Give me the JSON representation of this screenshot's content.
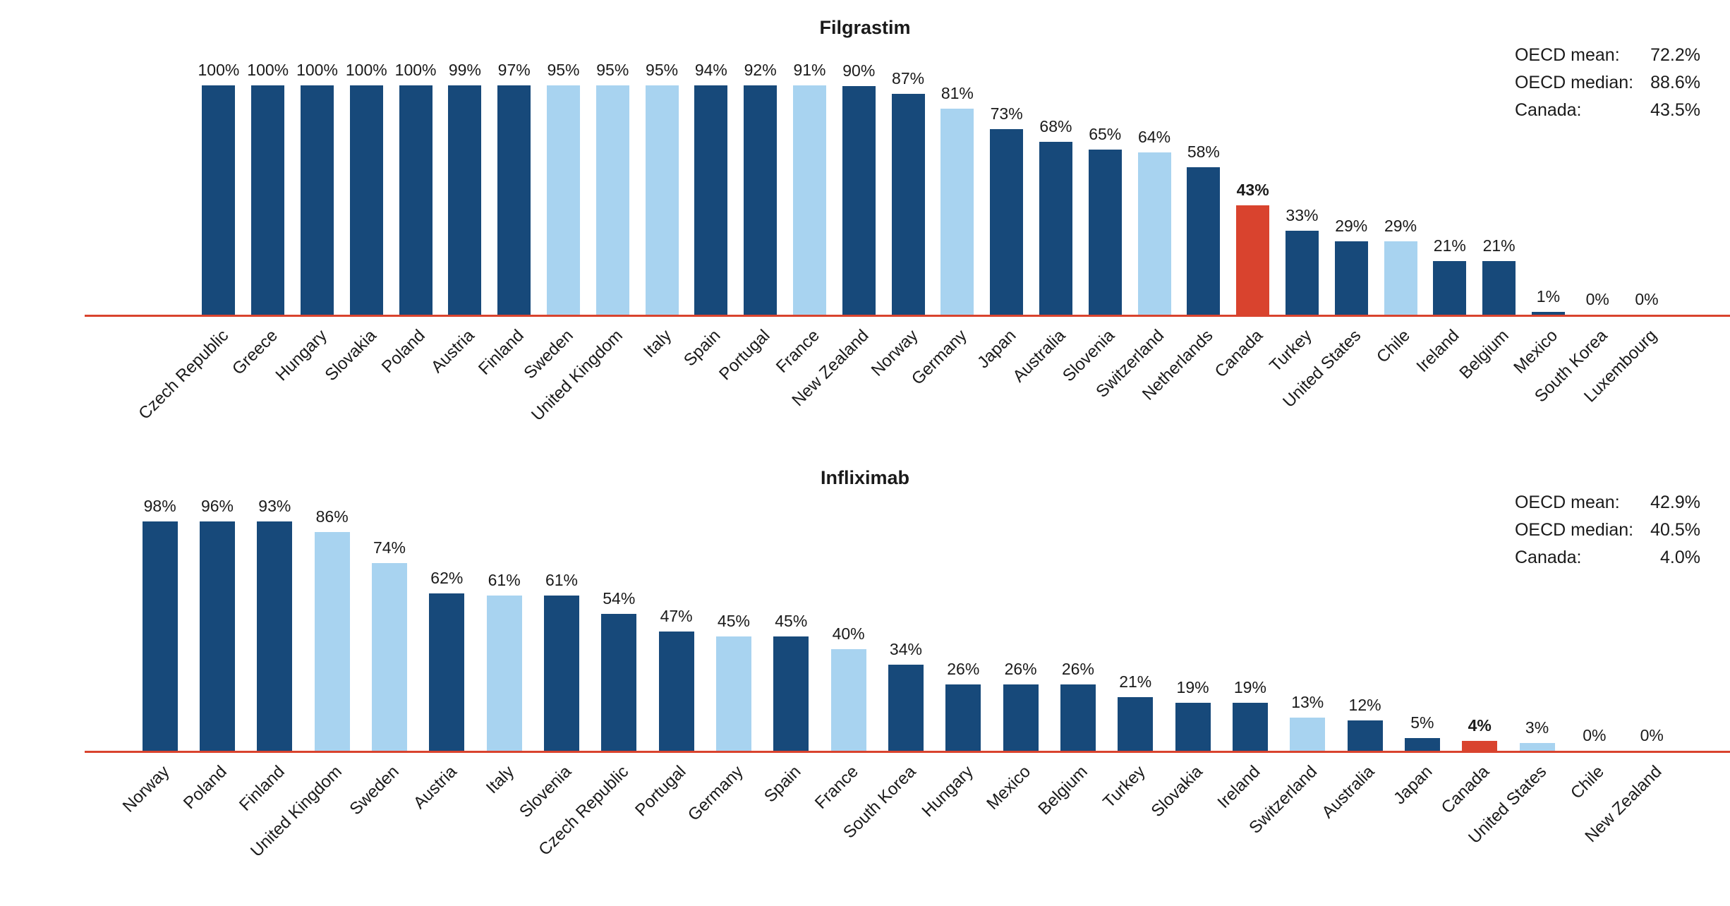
{
  "colors": {
    "dark_blue": "#17497A",
    "light_blue": "#A8D3F0",
    "highlight_red": "#D9432E",
    "axis_red": "#D9432E"
  },
  "chart_data": [
    {
      "type": "bar",
      "title": "Filgrastim",
      "unit": "%",
      "ylim": [
        0,
        100
      ],
      "grid": false,
      "legend_position": "none",
      "stats": [
        {
          "label": "OECD mean:",
          "value": "72.2%"
        },
        {
          "label": "OECD median:",
          "value": "88.6%"
        },
        {
          "label": "Canada:",
          "value": "43.5%"
        }
      ],
      "points": [
        {
          "label": "Czech Republic",
          "value": 100,
          "color": "dark_blue"
        },
        {
          "label": "Greece",
          "value": 100,
          "color": "dark_blue"
        },
        {
          "label": "Hungary",
          "value": 100,
          "color": "dark_blue"
        },
        {
          "label": "Slovakia",
          "value": 100,
          "color": "dark_blue"
        },
        {
          "label": "Poland",
          "value": 100,
          "color": "dark_blue"
        },
        {
          "label": "Austria",
          "value": 99,
          "color": "dark_blue"
        },
        {
          "label": "Finland",
          "value": 97,
          "color": "dark_blue"
        },
        {
          "label": "Sweden",
          "value": 95,
          "color": "light_blue"
        },
        {
          "label": "United Kingdom",
          "value": 95,
          "color": "light_blue"
        },
        {
          "label": "Italy",
          "value": 95,
          "color": "light_blue"
        },
        {
          "label": "Spain",
          "value": 94,
          "color": "dark_blue"
        },
        {
          "label": "Portugal",
          "value": 92,
          "color": "dark_blue"
        },
        {
          "label": "France",
          "value": 91,
          "color": "light_blue"
        },
        {
          "label": "New Zealand",
          "value": 90,
          "color": "dark_blue"
        },
        {
          "label": "Norway",
          "value": 87,
          "color": "dark_blue"
        },
        {
          "label": "Germany",
          "value": 81,
          "color": "light_blue"
        },
        {
          "label": "Japan",
          "value": 73,
          "color": "dark_blue"
        },
        {
          "label": "Australia",
          "value": 68,
          "color": "dark_blue"
        },
        {
          "label": "Slovenia",
          "value": 65,
          "color": "dark_blue"
        },
        {
          "label": "Switzerland",
          "value": 64,
          "color": "light_blue"
        },
        {
          "label": "Netherlands",
          "value": 58,
          "color": "dark_blue"
        },
        {
          "label": "Canada",
          "value": 43,
          "color": "highlight_red",
          "emphasis": true
        },
        {
          "label": "Turkey",
          "value": 33,
          "color": "dark_blue"
        },
        {
          "label": "United States",
          "value": 29,
          "color": "dark_blue"
        },
        {
          "label": "Chile",
          "value": 29,
          "color": "light_blue"
        },
        {
          "label": "Ireland",
          "value": 21,
          "color": "dark_blue"
        },
        {
          "label": "Belgium",
          "value": 21,
          "color": "dark_blue"
        },
        {
          "label": "Mexico",
          "value": 1,
          "color": "dark_blue"
        },
        {
          "label": "South Korea",
          "value": 0,
          "color": "dark_blue"
        },
        {
          "label": "Luxembourg",
          "value": 0,
          "color": "dark_blue"
        }
      ]
    },
    {
      "type": "bar",
      "title": "Infliximab",
      "unit": "%",
      "ylim": [
        0,
        100
      ],
      "grid": false,
      "legend_position": "none",
      "stats": [
        {
          "label": "OECD mean:",
          "value": "42.9%"
        },
        {
          "label": "OECD median:",
          "value": "40.5%"
        },
        {
          "label": "Canada:",
          "value": "4.0%"
        }
      ],
      "points": [
        {
          "label": "Norway",
          "value": 98,
          "color": "dark_blue"
        },
        {
          "label": "Poland",
          "value": 96,
          "color": "dark_blue"
        },
        {
          "label": "Finland",
          "value": 93,
          "color": "dark_blue"
        },
        {
          "label": "United Kingdom",
          "value": 86,
          "color": "light_blue"
        },
        {
          "label": "Sweden",
          "value": 74,
          "color": "light_blue"
        },
        {
          "label": "Austria",
          "value": 62,
          "color": "dark_blue"
        },
        {
          "label": "Italy",
          "value": 61,
          "color": "light_blue"
        },
        {
          "label": "Slovenia",
          "value": 61,
          "color": "dark_blue"
        },
        {
          "label": "Czech Republic",
          "value": 54,
          "color": "dark_blue"
        },
        {
          "label": "Portugal",
          "value": 47,
          "color": "dark_blue"
        },
        {
          "label": "Germany",
          "value": 45,
          "color": "light_blue"
        },
        {
          "label": "Spain",
          "value": 45,
          "color": "dark_blue"
        },
        {
          "label": "France",
          "value": 40,
          "color": "light_blue"
        },
        {
          "label": "South Korea",
          "value": 34,
          "color": "dark_blue"
        },
        {
          "label": "Hungary",
          "value": 26,
          "color": "dark_blue"
        },
        {
          "label": "Mexico",
          "value": 26,
          "color": "dark_blue"
        },
        {
          "label": "Belgium",
          "value": 26,
          "color": "dark_blue"
        },
        {
          "label": "Turkey",
          "value": 21,
          "color": "dark_blue"
        },
        {
          "label": "Slovakia",
          "value": 19,
          "color": "dark_blue"
        },
        {
          "label": "Ireland",
          "value": 19,
          "color": "dark_blue"
        },
        {
          "label": "Switzerland",
          "value": 13,
          "color": "light_blue"
        },
        {
          "label": "Australia",
          "value": 12,
          "color": "dark_blue"
        },
        {
          "label": "Japan",
          "value": 5,
          "color": "dark_blue"
        },
        {
          "label": "Canada",
          "value": 4,
          "color": "highlight_red",
          "emphasis": true
        },
        {
          "label": "United States",
          "value": 3,
          "color": "light_blue"
        },
        {
          "label": "Chile",
          "value": 0,
          "color": "dark_blue"
        },
        {
          "label": "New Zealand",
          "value": 0,
          "color": "dark_blue"
        }
      ]
    }
  ]
}
